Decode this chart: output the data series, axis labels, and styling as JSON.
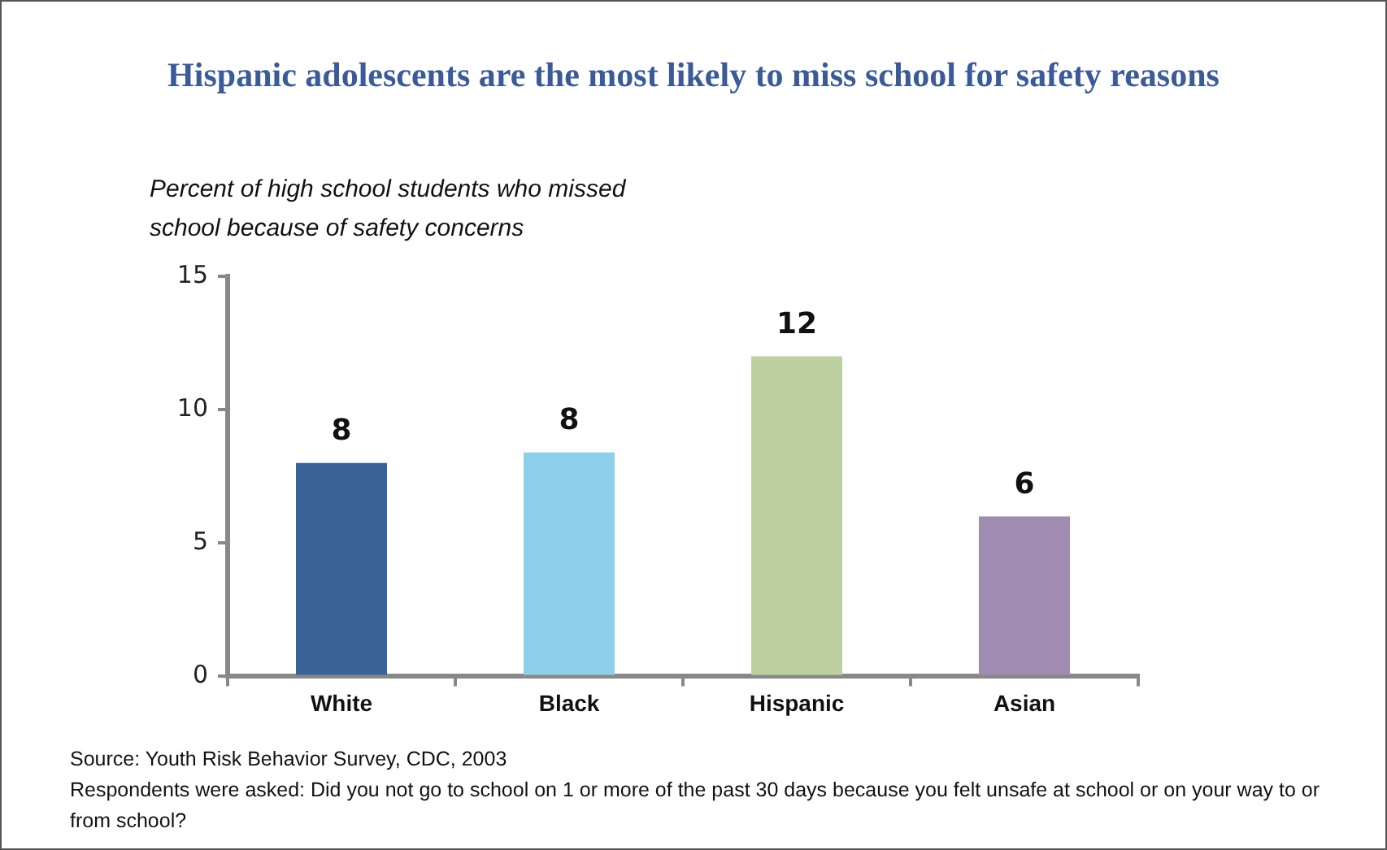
{
  "chart_data": {
    "type": "bar",
    "title": "Hispanic adolescents are the most likely to miss school for safety reasons",
    "ylabel": "Percent of high school students who missed school because of safety concerns",
    "categories": [
      "White",
      "Black",
      "Hispanic",
      "Asian"
    ],
    "values": [
      8,
      8.4,
      12,
      6
    ],
    "value_labels": [
      "8",
      "8",
      "12",
      "6"
    ],
    "colors": [
      "#386298",
      "#8ecfe9",
      "#bcd0a0",
      "#9f8cb0"
    ],
    "ylim": [
      0,
      15
    ],
    "yticks": [
      0,
      5,
      10,
      15
    ],
    "grid": false,
    "legend": false,
    "annotations": [
      "Source: Youth Risk Behavior Survey, CDC, 2003",
      "Respondents were asked: Did you not go to school on 1 or more of the past 30 days because you felt unsafe at school or on your way to or from school?"
    ]
  }
}
